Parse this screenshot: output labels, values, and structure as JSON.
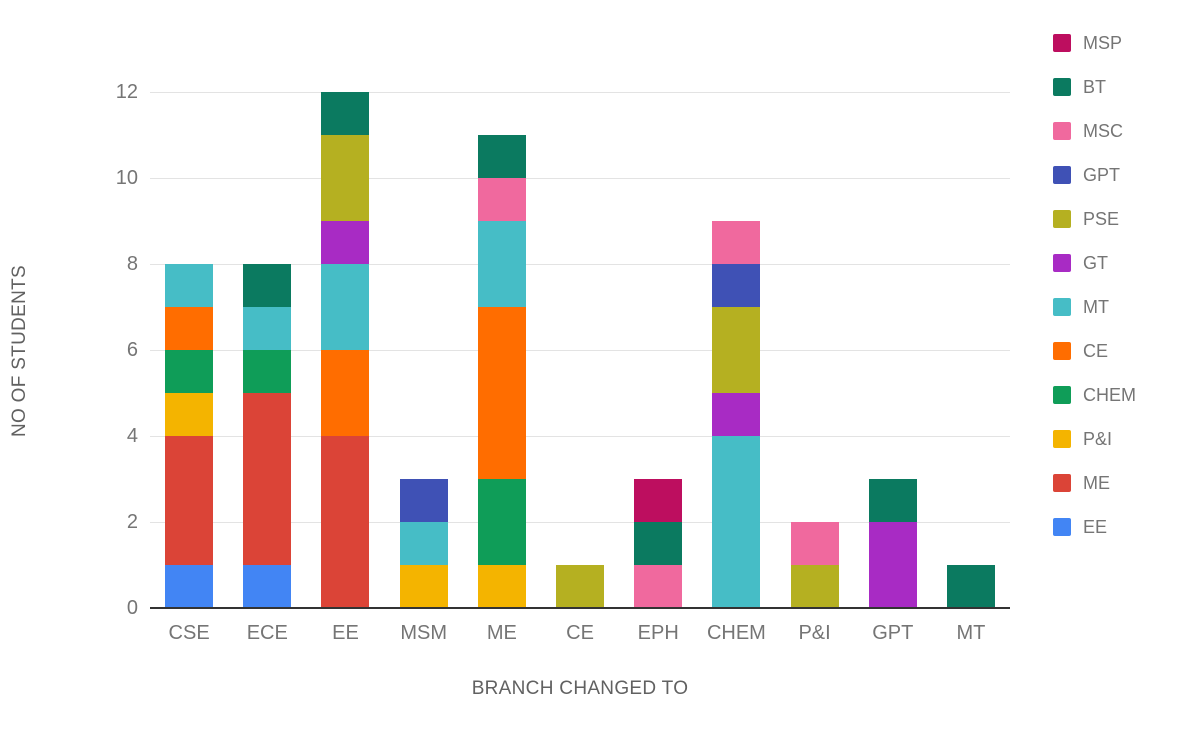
{
  "chart_data": {
    "type": "bar",
    "stacked": true,
    "xlabel": "BRANCH CHANGED TO",
    "ylabel": "NO OF STUDENTS",
    "categories": [
      "CSE",
      "ECE",
      "EE",
      "MSM",
      "ME",
      "CE",
      "EPH",
      "CHEM",
      "P&I",
      "GPT",
      "MT"
    ],
    "series": [
      {
        "name": "EE",
        "color": "#4285F4",
        "values": [
          1,
          1,
          0,
          0,
          0,
          0,
          0,
          0,
          0,
          0,
          0
        ]
      },
      {
        "name": "ME",
        "color": "#DB4437",
        "values": [
          3,
          4,
          4,
          0,
          0,
          0,
          0,
          0,
          0,
          0,
          0
        ]
      },
      {
        "name": "P&I",
        "color": "#F4B400",
        "values": [
          1,
          0,
          0,
          1,
          1,
          0,
          0,
          0,
          0,
          0,
          0
        ]
      },
      {
        "name": "CHEM",
        "color": "#0F9D58",
        "values": [
          1,
          1,
          0,
          0,
          2,
          0,
          0,
          0,
          0,
          0,
          0
        ]
      },
      {
        "name": "CE",
        "color": "#FF6D00",
        "values": [
          1,
          0,
          2,
          0,
          4,
          0,
          0,
          0,
          0,
          0,
          0
        ]
      },
      {
        "name": "MT",
        "color": "#46BDC6",
        "values": [
          1,
          1,
          2,
          1,
          2,
          0,
          0,
          4,
          0,
          0,
          0
        ]
      },
      {
        "name": "GT",
        "color": "#A82BC4",
        "values": [
          0,
          0,
          1,
          0,
          0,
          0,
          0,
          1,
          0,
          2,
          0
        ]
      },
      {
        "name": "PSE",
        "color": "#B5B021",
        "values": [
          0,
          0,
          2,
          0,
          0,
          1,
          0,
          2,
          1,
          0,
          0
        ]
      },
      {
        "name": "GPT",
        "color": "#3F51B5",
        "values": [
          0,
          0,
          0,
          1,
          0,
          0,
          0,
          1,
          0,
          0,
          0
        ]
      },
      {
        "name": "MSC",
        "color": "#F0699E",
        "values": [
          0,
          0,
          0,
          0,
          1,
          0,
          1,
          1,
          1,
          0,
          0
        ]
      },
      {
        "name": "BT",
        "color": "#0B7A60",
        "values": [
          0,
          1,
          1,
          0,
          1,
          0,
          1,
          0,
          0,
          1,
          1
        ]
      },
      {
        "name": "MSP",
        "color": "#BD0E5F",
        "values": [
          0,
          0,
          0,
          0,
          0,
          0,
          1,
          0,
          0,
          0,
          0
        ]
      }
    ],
    "ylim": [
      0,
      12
    ],
    "yticks": [
      0,
      2,
      4,
      6,
      8,
      10,
      12
    ],
    "grid": true,
    "legend_position": "right",
    "legend_order": "reversed"
  },
  "style_colors": {
    "background": "#ffffff",
    "gridline": "#e3e3e3",
    "baseline": "#333333",
    "tick_label": "#757575",
    "axis_title": "#616161",
    "legend_label": "#757575"
  }
}
